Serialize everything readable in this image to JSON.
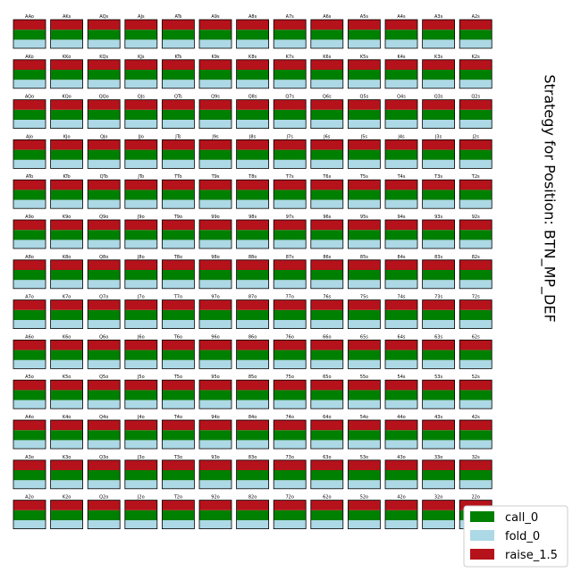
{
  "chart_data": {
    "type": "bar",
    "chart_kind": "hand-range strategy grid (stacked frequency bars per hand)",
    "title": "Strategy for Position: BTN_MP_DEF",
    "legend_placement": "bottom-right",
    "grid": false,
    "stack_order_bottom_to_top": [
      "fold_0",
      "call_0",
      "raise_1.5"
    ],
    "series": [
      {
        "name": "call_0",
        "color": "#008000",
        "value": 0.35
      },
      {
        "name": "fold_0",
        "color": "#add8e6",
        "value": 0.3
      },
      {
        "name": "raise_1.5",
        "color": "#b5121b",
        "value": 0.35
      }
    ],
    "hands": [
      [
        "AAo",
        "AKs",
        "AQs",
        "AJs",
        "ATs",
        "A9s",
        "A8s",
        "A7s",
        "A6s",
        "A5s",
        "A4s",
        "A3s",
        "A2s"
      ],
      [
        "AKo",
        "KKo",
        "KQs",
        "KJs",
        "KTs",
        "K9s",
        "K8s",
        "K7s",
        "K6s",
        "K5s",
        "K4s",
        "K3s",
        "K2s"
      ],
      [
        "AQo",
        "KQo",
        "QQo",
        "QJs",
        "QTs",
        "Q9s",
        "Q8s",
        "Q7s",
        "Q6s",
        "Q5s",
        "Q4s",
        "Q3s",
        "Q2s"
      ],
      [
        "AJo",
        "KJo",
        "QJo",
        "JJo",
        "JTs",
        "J9s",
        "J8s",
        "J7s",
        "J6s",
        "J5s",
        "J4s",
        "J3s",
        "J2s"
      ],
      [
        "ATo",
        "KTo",
        "QTo",
        "JTo",
        "TTo",
        "T9s",
        "T8s",
        "T7s",
        "T6s",
        "T5s",
        "T4s",
        "T3s",
        "T2s"
      ],
      [
        "A9o",
        "K9o",
        "Q9o",
        "J9o",
        "T9o",
        "99o",
        "98s",
        "97s",
        "96s",
        "95s",
        "94s",
        "93s",
        "92s"
      ],
      [
        "A8o",
        "K8o",
        "Q8o",
        "J8o",
        "T8o",
        "98o",
        "88o",
        "87s",
        "86s",
        "85s",
        "84s",
        "83s",
        "82s"
      ],
      [
        "A7o",
        "K7o",
        "Q7o",
        "J7o",
        "T7o",
        "97o",
        "87o",
        "77o",
        "76s",
        "75s",
        "74s",
        "73s",
        "72s"
      ],
      [
        "A6o",
        "K6o",
        "Q6o",
        "J6o",
        "T6o",
        "96o",
        "86o",
        "76o",
        "66o",
        "65s",
        "64s",
        "63s",
        "62s"
      ],
      [
        "A5o",
        "K5o",
        "Q5o",
        "J5o",
        "T5o",
        "95o",
        "85o",
        "75o",
        "65o",
        "55o",
        "54s",
        "53s",
        "52s"
      ],
      [
        "A4o",
        "K4o",
        "Q4o",
        "J4o",
        "T4o",
        "94o",
        "84o",
        "74o",
        "64o",
        "54o",
        "44o",
        "43s",
        "42s"
      ],
      [
        "A3o",
        "K3o",
        "Q3o",
        "J3o",
        "T3o",
        "93o",
        "83o",
        "73o",
        "63o",
        "53o",
        "43o",
        "33o",
        "32s"
      ],
      [
        "A2o",
        "K2o",
        "Q2o",
        "J2o",
        "T2o",
        "92o",
        "82o",
        "72o",
        "62o",
        "52o",
        "42o",
        "32o",
        "22o"
      ]
    ]
  }
}
